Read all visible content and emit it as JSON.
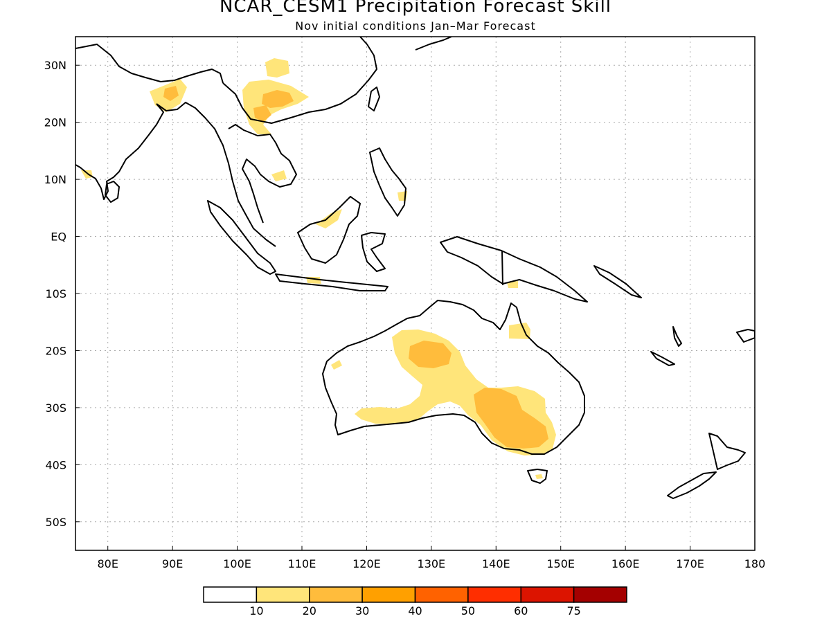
{
  "title": "NCAR_CESM1 Precipitation Forecast Skill",
  "subtitle": "Nov initial conditions  Jan–Mar Forecast",
  "map": {
    "lon_range": [
      75,
      180
    ],
    "lat_range": [
      -55,
      35
    ],
    "grid": true,
    "lon_labels": [
      {
        "lon": 80,
        "text": "80E"
      },
      {
        "lon": 90,
        "text": "90E"
      },
      {
        "lon": 100,
        "text": "100E"
      },
      {
        "lon": 110,
        "text": "110E"
      },
      {
        "lon": 120,
        "text": "120E"
      },
      {
        "lon": 130,
        "text": "130E"
      },
      {
        "lon": 140,
        "text": "140E"
      },
      {
        "lon": 150,
        "text": "150E"
      },
      {
        "lon": 160,
        "text": "160E"
      },
      {
        "lon": 170,
        "text": "170E"
      },
      {
        "lon": 180,
        "text": "180"
      }
    ],
    "lat_labels": [
      {
        "lat": 30,
        "text": "30N"
      },
      {
        "lat": 20,
        "text": "20N"
      },
      {
        "lat": 10,
        "text": "10N"
      },
      {
        "lat": 0,
        "text": "EQ"
      },
      {
        "lat": -10,
        "text": "10S"
      },
      {
        "lat": -20,
        "text": "20S"
      },
      {
        "lat": -30,
        "text": "30S"
      },
      {
        "lat": -40,
        "text": "40S"
      },
      {
        "lat": -50,
        "text": "50S"
      }
    ]
  },
  "colorbar": {
    "colors": [
      "#ffffff",
      "#ffe57a",
      "#ffbc3c",
      "#ffa000",
      "#ff6200",
      "#ff2e00",
      "#dc1400",
      "#a40000"
    ],
    "labels": [
      "10",
      "20",
      "30",
      "40",
      "50",
      "60",
      "75"
    ]
  },
  "colors": {
    "level1": "#ffe57a",
    "level2": "#ffbc3c",
    "coast": "#000000",
    "grid": "#aaaaaa"
  }
}
